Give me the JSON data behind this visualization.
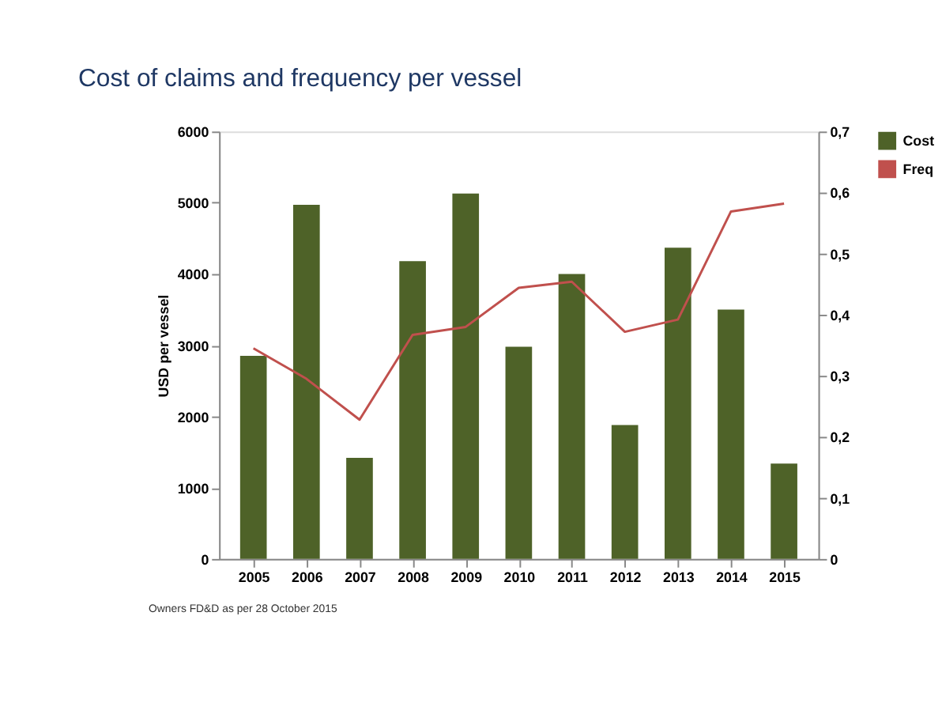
{
  "chart_data": {
    "type": "bar",
    "title": "Cost of claims and frequency per vessel",
    "ylabel": "USD per vessel",
    "categories": [
      "2005",
      "2006",
      "2007",
      "2008",
      "2009",
      "2010",
      "2011",
      "2012",
      "2013",
      "2014",
      "2015"
    ],
    "series": [
      {
        "name": "Cost",
        "color": "#4e6228",
        "values": [
          2850,
          4970,
          1420,
          4180,
          5130,
          2980,
          4000,
          1880,
          4370,
          3500,
          1340
        ]
      },
      {
        "name": "Freq",
        "type": "line",
        "axis": "y2",
        "color": "#c0504d",
        "values": [
          0.345,
          0.295,
          0.228,
          0.367,
          0.38,
          0.444,
          0.454,
          0.372,
          0.392,
          0.569,
          0.582
        ]
      }
    ],
    "ylim": [
      0,
      6000
    ],
    "yticks": [
      0,
      1000,
      2000,
      3000,
      4000,
      5000,
      6000
    ],
    "y2lim": [
      0,
      0.7
    ],
    "y2ticks": [
      0,
      {
        "value": 0.1,
        "label": "0,1"
      },
      {
        "value": 0.2,
        "label": "0,2"
      },
      {
        "value": 0.3,
        "label": "0,3"
      },
      {
        "value": 0.4,
        "label": "0,4"
      },
      {
        "value": 0.5,
        "label": "0,5"
      },
      {
        "value": 0.6,
        "label": "0,6"
      },
      {
        "value": 0.7,
        "label": "0,7"
      }
    ],
    "grid": false,
    "legend": "right",
    "marker": "none",
    "line_style": "solid",
    "annotations": [
      "Owners FD&D as per 28 October 2015"
    ]
  }
}
